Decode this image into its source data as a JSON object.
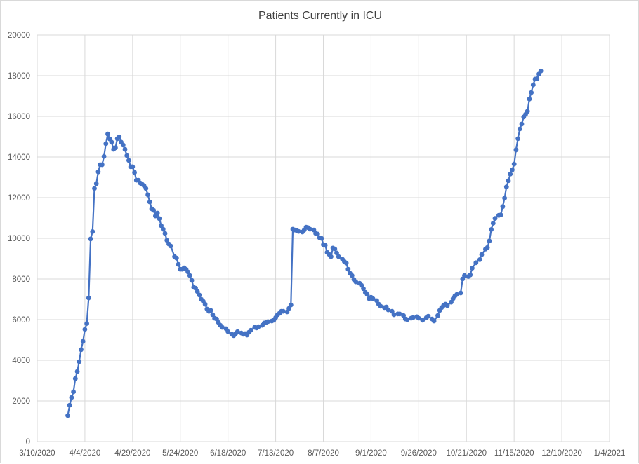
{
  "chart_data": {
    "type": "line",
    "title": "Patients Currently in ICU",
    "xlabel": "",
    "ylabel": "",
    "xlim": [
      "2020-03-10",
      "2021-01-04"
    ],
    "ylim": [
      0,
      20000
    ],
    "x_tick_labels": [
      "3/10/2020",
      "4/4/2020",
      "4/29/2020",
      "5/24/2020",
      "6/18/2020",
      "7/13/2020",
      "8/7/2020",
      "9/1/2020",
      "9/26/2020",
      "10/21/2020",
      "11/15/2020",
      "12/10/2020",
      "1/4/2021"
    ],
    "y_tick_labels": [
      "0",
      "2000",
      "4000",
      "6000",
      "8000",
      "10000",
      "12000",
      "14000",
      "16000",
      "18000",
      "20000"
    ],
    "y_ticks": [
      0,
      2000,
      4000,
      6000,
      8000,
      10000,
      12000,
      14000,
      16000,
      18000,
      20000
    ],
    "grid": true,
    "legend": "none",
    "marker": "circle",
    "color": "#4472C4",
    "series": [
      {
        "points": [
          [
            "2020-03-26",
            1280
          ],
          [
            "2020-03-27",
            1790
          ],
          [
            "2020-03-28",
            2170
          ],
          [
            "2020-03-29",
            2450
          ],
          [
            "2020-03-30",
            3100
          ],
          [
            "2020-03-31",
            3450
          ],
          [
            "2020-04-01",
            3930
          ],
          [
            "2020-04-02",
            4520
          ],
          [
            "2020-04-03",
            4930
          ],
          [
            "2020-04-04",
            5520
          ],
          [
            "2020-04-05",
            5810
          ],
          [
            "2020-04-06",
            7070
          ],
          [
            "2020-04-07",
            9970
          ],
          [
            "2020-04-08",
            10330
          ],
          [
            "2020-04-09",
            12450
          ],
          [
            "2020-04-10",
            12690
          ],
          [
            "2020-04-11",
            13270
          ],
          [
            "2020-04-12",
            13620
          ],
          [
            "2020-04-13",
            13620
          ],
          [
            "2020-04-14",
            14030
          ],
          [
            "2020-04-15",
            14650
          ],
          [
            "2020-04-16",
            15130
          ],
          [
            "2020-04-17",
            14890
          ],
          [
            "2020-04-18",
            14730
          ],
          [
            "2020-04-19",
            14380
          ],
          [
            "2020-04-20",
            14450
          ],
          [
            "2020-04-21",
            14900
          ],
          [
            "2020-04-22",
            14990
          ],
          [
            "2020-04-23",
            14730
          ],
          [
            "2020-04-24",
            14590
          ],
          [
            "2020-04-25",
            14380
          ],
          [
            "2020-04-26",
            14070
          ],
          [
            "2020-04-27",
            13830
          ],
          [
            "2020-04-28",
            13520
          ],
          [
            "2020-04-29",
            13520
          ],
          [
            "2020-04-30",
            13240
          ],
          [
            "2020-05-01",
            12860
          ],
          [
            "2020-05-02",
            12860
          ],
          [
            "2020-05-03",
            12720
          ],
          [
            "2020-05-04",
            12660
          ],
          [
            "2020-05-05",
            12590
          ],
          [
            "2020-05-06",
            12450
          ],
          [
            "2020-05-07",
            12140
          ],
          [
            "2020-05-08",
            11790
          ],
          [
            "2020-05-09",
            11450
          ],
          [
            "2020-05-10",
            11380
          ],
          [
            "2020-05-11",
            11100
          ],
          [
            "2020-05-12",
            11240
          ],
          [
            "2020-05-13",
            10970
          ],
          [
            "2020-05-14",
            10620
          ],
          [
            "2020-05-15",
            10450
          ],
          [
            "2020-05-16",
            10240
          ],
          [
            "2020-05-17",
            9900
          ],
          [
            "2020-05-18",
            9720
          ],
          [
            "2020-05-19",
            9620
          ],
          [
            "2020-05-21",
            9100
          ],
          [
            "2020-05-22",
            9030
          ],
          [
            "2020-05-23",
            8720
          ],
          [
            "2020-05-24",
            8480
          ],
          [
            "2020-05-25",
            8480
          ],
          [
            "2020-05-26",
            8550
          ],
          [
            "2020-05-27",
            8480
          ],
          [
            "2020-05-28",
            8350
          ],
          [
            "2020-05-29",
            8170
          ],
          [
            "2020-05-30",
            7930
          ],
          [
            "2020-05-31",
            7590
          ],
          [
            "2020-06-01",
            7550
          ],
          [
            "2020-06-02",
            7380
          ],
          [
            "2020-06-03",
            7210
          ],
          [
            "2020-06-04",
            7000
          ],
          [
            "2020-06-05",
            6900
          ],
          [
            "2020-06-06",
            6760
          ],
          [
            "2020-06-07",
            6520
          ],
          [
            "2020-06-08",
            6410
          ],
          [
            "2020-06-09",
            6450
          ],
          [
            "2020-06-10",
            6240
          ],
          [
            "2020-06-11",
            6070
          ],
          [
            "2020-06-12",
            6030
          ],
          [
            "2020-06-13",
            5860
          ],
          [
            "2020-06-14",
            5720
          ],
          [
            "2020-06-15",
            5620
          ],
          [
            "2020-06-17",
            5550
          ],
          [
            "2020-06-18",
            5410
          ],
          [
            "2020-06-20",
            5280
          ],
          [
            "2020-06-21",
            5210
          ],
          [
            "2020-06-22",
            5310
          ],
          [
            "2020-06-23",
            5410
          ],
          [
            "2020-06-25",
            5340
          ],
          [
            "2020-06-26",
            5280
          ],
          [
            "2020-06-27",
            5310
          ],
          [
            "2020-06-28",
            5240
          ],
          [
            "2020-06-29",
            5380
          ],
          [
            "2020-06-30",
            5480
          ],
          [
            "2020-07-02",
            5620
          ],
          [
            "2020-07-03",
            5590
          ],
          [
            "2020-07-04",
            5650
          ],
          [
            "2020-07-06",
            5720
          ],
          [
            "2020-07-07",
            5830
          ],
          [
            "2020-07-08",
            5860
          ],
          [
            "2020-07-09",
            5900
          ],
          [
            "2020-07-11",
            5930
          ],
          [
            "2020-07-12",
            5970
          ],
          [
            "2020-07-13",
            6100
          ],
          [
            "2020-07-14",
            6240
          ],
          [
            "2020-07-15",
            6310
          ],
          [
            "2020-07-16",
            6410
          ],
          [
            "2020-07-17",
            6410
          ],
          [
            "2020-07-19",
            6380
          ],
          [
            "2020-07-20",
            6550
          ],
          [
            "2020-07-21",
            6720
          ],
          [
            "2020-07-22",
            10450
          ],
          [
            "2020-07-23",
            10410
          ],
          [
            "2020-07-24",
            10380
          ],
          [
            "2020-07-25",
            10340
          ],
          [
            "2020-07-27",
            10310
          ],
          [
            "2020-07-28",
            10410
          ],
          [
            "2020-07-29",
            10550
          ],
          [
            "2020-07-30",
            10520
          ],
          [
            "2020-07-31",
            10450
          ],
          [
            "2020-08-02",
            10410
          ],
          [
            "2020-08-03",
            10240
          ],
          [
            "2020-08-04",
            10210
          ],
          [
            "2020-08-05",
            10030
          ],
          [
            "2020-08-06",
            10000
          ],
          [
            "2020-08-07",
            9690
          ],
          [
            "2020-08-08",
            9660
          ],
          [
            "2020-08-09",
            9310
          ],
          [
            "2020-08-10",
            9210
          ],
          [
            "2020-08-11",
            9100
          ],
          [
            "2020-08-12",
            9520
          ],
          [
            "2020-08-13",
            9480
          ],
          [
            "2020-08-14",
            9280
          ],
          [
            "2020-08-15",
            9100
          ],
          [
            "2020-08-17",
            8970
          ],
          [
            "2020-08-18",
            8860
          ],
          [
            "2020-08-19",
            8790
          ],
          [
            "2020-08-20",
            8480
          ],
          [
            "2020-08-21",
            8280
          ],
          [
            "2020-08-22",
            8170
          ],
          [
            "2020-08-23",
            7970
          ],
          [
            "2020-08-24",
            7860
          ],
          [
            "2020-08-26",
            7790
          ],
          [
            "2020-08-27",
            7690
          ],
          [
            "2020-08-28",
            7520
          ],
          [
            "2020-08-29",
            7340
          ],
          [
            "2020-08-30",
            7240
          ],
          [
            "2020-08-31",
            7030
          ],
          [
            "2020-09-01",
            7100
          ],
          [
            "2020-09-02",
            7030
          ],
          [
            "2020-09-04",
            6930
          ],
          [
            "2020-09-05",
            6760
          ],
          [
            "2020-09-06",
            6660
          ],
          [
            "2020-09-08",
            6590
          ],
          [
            "2020-09-09",
            6620
          ],
          [
            "2020-09-10",
            6480
          ],
          [
            "2020-09-12",
            6410
          ],
          [
            "2020-09-13",
            6240
          ],
          [
            "2020-09-15",
            6280
          ],
          [
            "2020-09-16",
            6280
          ],
          [
            "2020-09-18",
            6200
          ],
          [
            "2020-09-19",
            6030
          ],
          [
            "2020-09-20",
            6000
          ],
          [
            "2020-09-22",
            6070
          ],
          [
            "2020-09-23",
            6100
          ],
          [
            "2020-09-25",
            6140
          ],
          [
            "2020-09-26",
            6070
          ],
          [
            "2020-09-28",
            5970
          ],
          [
            "2020-09-30",
            6100
          ],
          [
            "2020-10-01",
            6170
          ],
          [
            "2020-10-03",
            6030
          ],
          [
            "2020-10-04",
            5930
          ],
          [
            "2020-10-06",
            6200
          ],
          [
            "2020-10-07",
            6450
          ],
          [
            "2020-10-08",
            6590
          ],
          [
            "2020-10-09",
            6690
          ],
          [
            "2020-10-10",
            6760
          ],
          [
            "2020-10-11",
            6690
          ],
          [
            "2020-10-13",
            6860
          ],
          [
            "2020-10-14",
            7030
          ],
          [
            "2020-10-15",
            7170
          ],
          [
            "2020-10-16",
            7240
          ],
          [
            "2020-10-18",
            7310
          ],
          [
            "2020-10-19",
            8000
          ],
          [
            "2020-10-20",
            8170
          ],
          [
            "2020-10-22",
            8120
          ],
          [
            "2020-10-23",
            8200
          ],
          [
            "2020-10-24",
            8530
          ],
          [
            "2020-10-26",
            8800
          ],
          [
            "2020-10-28",
            8950
          ],
          [
            "2020-10-29",
            9200
          ],
          [
            "2020-10-31",
            9470
          ],
          [
            "2020-11-01",
            9550
          ],
          [
            "2020-11-02",
            9870
          ],
          [
            "2020-11-03",
            10430
          ],
          [
            "2020-11-04",
            10740
          ],
          [
            "2020-11-05",
            10980
          ],
          [
            "2020-11-07",
            11130
          ],
          [
            "2020-11-08",
            11150
          ],
          [
            "2020-11-09",
            11560
          ],
          [
            "2020-11-10",
            11980
          ],
          [
            "2020-11-11",
            12530
          ],
          [
            "2020-11-12",
            12830
          ],
          [
            "2020-11-13",
            13160
          ],
          [
            "2020-11-14",
            13370
          ],
          [
            "2020-11-15",
            13650
          ],
          [
            "2020-11-16",
            14350
          ],
          [
            "2020-11-17",
            14900
          ],
          [
            "2020-11-18",
            15380
          ],
          [
            "2020-11-19",
            15620
          ],
          [
            "2020-11-20",
            15970
          ],
          [
            "2020-11-21",
            16100
          ],
          [
            "2020-11-22",
            16250
          ],
          [
            "2020-11-23",
            16850
          ],
          [
            "2020-11-24",
            17170
          ],
          [
            "2020-11-25",
            17550
          ],
          [
            "2020-11-26",
            17830
          ],
          [
            "2020-11-27",
            17850
          ],
          [
            "2020-11-28",
            18080
          ],
          [
            "2020-11-29",
            18230
          ]
        ]
      }
    ]
  }
}
